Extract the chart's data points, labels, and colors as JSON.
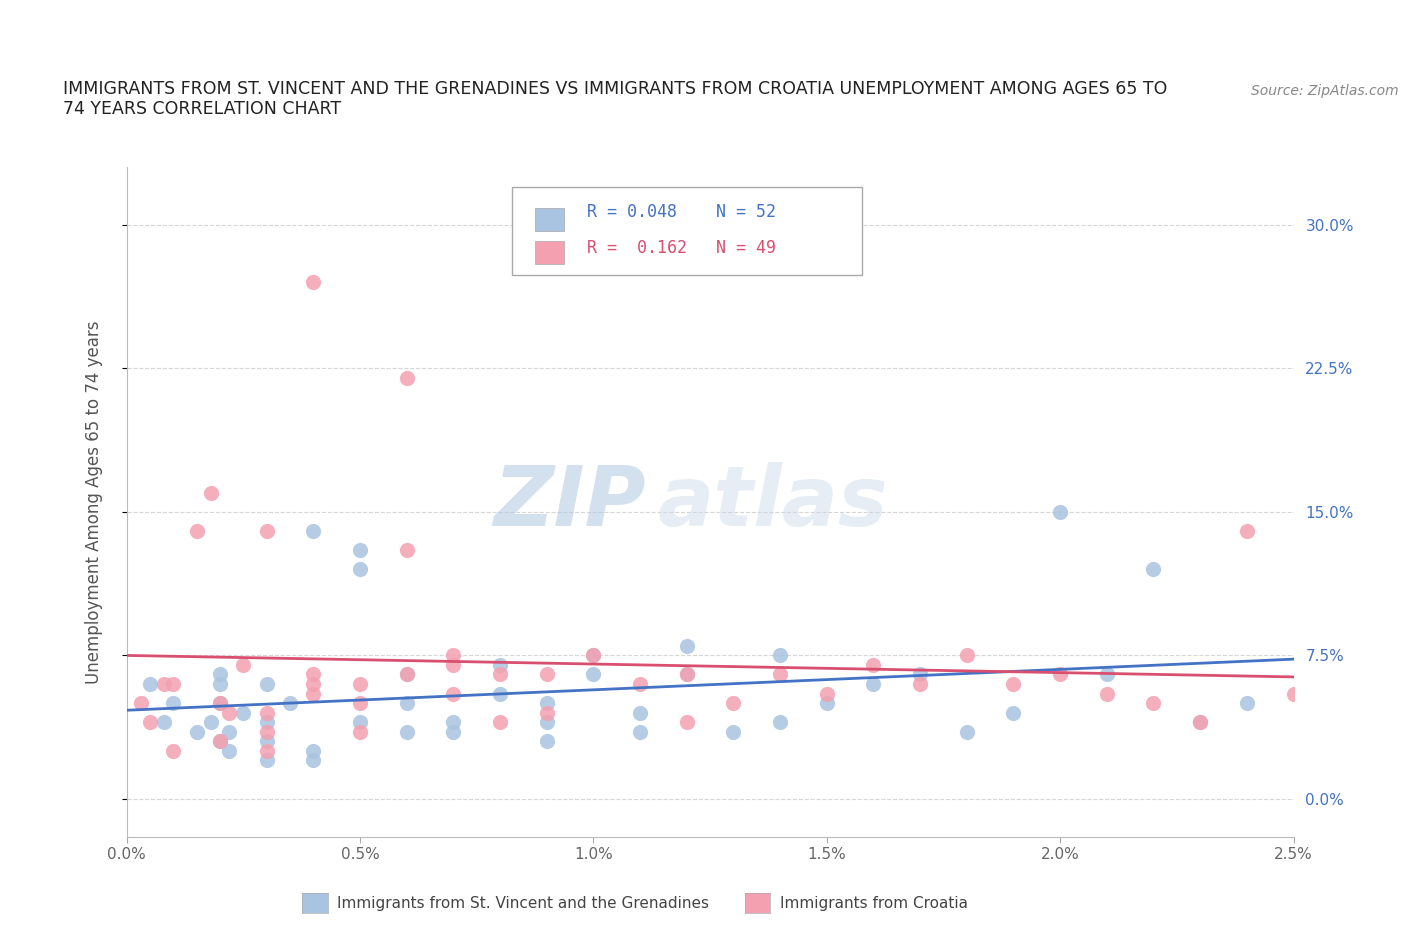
{
  "title_line1": "IMMIGRANTS FROM ST. VINCENT AND THE GRENADINES VS IMMIGRANTS FROM CROATIA UNEMPLOYMENT AMONG AGES 65 TO",
  "title_line2": "74 YEARS CORRELATION CHART",
  "source": "Source: ZipAtlas.com",
  "ylabel": "Unemployment Among Ages 65 to 74 years",
  "legend_label1": "Immigrants from St. Vincent and the Grenadines",
  "legend_label2": "Immigrants from Croatia",
  "R1": 0.048,
  "N1": 52,
  "R2": 0.162,
  "N2": 49,
  "color1": "#a8c4e0",
  "color2": "#f4a0b0",
  "line_color1": "#4472c4",
  "line_color2": "#d94f70",
  "xlim": [
    0.0,
    0.025
  ],
  "ylim": [
    -0.02,
    0.33
  ],
  "xticks": [
    0.0,
    0.005,
    0.01,
    0.015,
    0.02,
    0.025
  ],
  "yticks": [
    0.0,
    0.075,
    0.15,
    0.225,
    0.3
  ],
  "ytick_labels_right": [
    "0.0%",
    "7.5%",
    "15.0%",
    "22.5%",
    "30.0%"
  ],
  "xtick_labels": [
    "0.0%",
    "0.5%",
    "1.0%",
    "1.5%",
    "2.0%",
    "2.5%"
  ],
  "scatter1_x": [
    0.0005,
    0.0008,
    0.001,
    0.0015,
    0.0018,
    0.002,
    0.002,
    0.002,
    0.002,
    0.0022,
    0.0022,
    0.0025,
    0.003,
    0.003,
    0.003,
    0.003,
    0.0035,
    0.004,
    0.004,
    0.004,
    0.005,
    0.005,
    0.005,
    0.006,
    0.006,
    0.006,
    0.007,
    0.007,
    0.008,
    0.008,
    0.009,
    0.009,
    0.009,
    0.01,
    0.01,
    0.011,
    0.011,
    0.012,
    0.012,
    0.013,
    0.014,
    0.014,
    0.015,
    0.016,
    0.017,
    0.018,
    0.019,
    0.02,
    0.021,
    0.022,
    0.023,
    0.024
  ],
  "scatter1_y": [
    0.06,
    0.04,
    0.05,
    0.035,
    0.04,
    0.03,
    0.05,
    0.06,
    0.065,
    0.025,
    0.035,
    0.045,
    0.02,
    0.03,
    0.04,
    0.06,
    0.05,
    0.02,
    0.025,
    0.14,
    0.13,
    0.12,
    0.04,
    0.035,
    0.05,
    0.065,
    0.035,
    0.04,
    0.055,
    0.07,
    0.03,
    0.04,
    0.05,
    0.065,
    0.075,
    0.035,
    0.045,
    0.065,
    0.08,
    0.035,
    0.04,
    0.075,
    0.05,
    0.06,
    0.065,
    0.035,
    0.045,
    0.15,
    0.065,
    0.12,
    0.04,
    0.05
  ],
  "scatter2_x": [
    0.0003,
    0.0005,
    0.0008,
    0.001,
    0.001,
    0.0015,
    0.0018,
    0.002,
    0.002,
    0.0022,
    0.0025,
    0.003,
    0.003,
    0.003,
    0.003,
    0.004,
    0.004,
    0.004,
    0.004,
    0.005,
    0.005,
    0.005,
    0.006,
    0.006,
    0.006,
    0.007,
    0.007,
    0.007,
    0.008,
    0.008,
    0.009,
    0.009,
    0.01,
    0.011,
    0.012,
    0.012,
    0.013,
    0.014,
    0.015,
    0.016,
    0.017,
    0.018,
    0.019,
    0.02,
    0.021,
    0.022,
    0.023,
    0.024,
    0.025
  ],
  "scatter2_y": [
    0.05,
    0.04,
    0.06,
    0.025,
    0.06,
    0.14,
    0.16,
    0.03,
    0.05,
    0.045,
    0.07,
    0.025,
    0.035,
    0.045,
    0.14,
    0.06,
    0.065,
    0.055,
    0.27,
    0.035,
    0.05,
    0.06,
    0.22,
    0.13,
    0.065,
    0.07,
    0.055,
    0.075,
    0.04,
    0.065,
    0.045,
    0.065,
    0.075,
    0.06,
    0.04,
    0.065,
    0.05,
    0.065,
    0.055,
    0.07,
    0.06,
    0.075,
    0.06,
    0.065,
    0.055,
    0.05,
    0.04,
    0.14,
    0.055
  ],
  "watermark_zip": "ZIP",
  "watermark_atlas": "atlas",
  "background_color": "#ffffff",
  "grid_color": "#cccccc"
}
